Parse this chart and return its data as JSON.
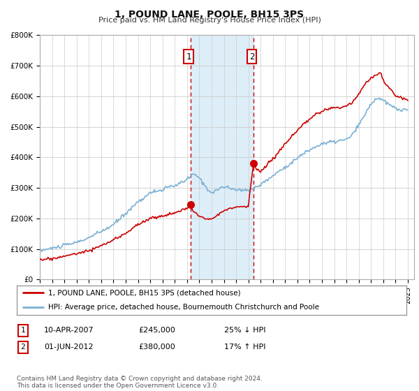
{
  "title": "1, POUND LANE, POOLE, BH15 3PS",
  "subtitle": "Price paid vs. HM Land Registry's House Price Index (HPI)",
  "ylabel_ticks": [
    "£0",
    "£100K",
    "£200K",
    "£300K",
    "£400K",
    "£500K",
    "£600K",
    "£700K",
    "£800K"
  ],
  "ylim": [
    0,
    800000
  ],
  "xlim_start": 1995.0,
  "xlim_end": 2025.5,
  "hpi_color": "#7ab0d4",
  "price_color": "#cc0000",
  "shade_color": "#ddeef8",
  "sale1_date": 2007.27,
  "sale1_price": 245000,
  "sale2_date": 2012.42,
  "sale2_price": 380000,
  "legend_line1": "1, POUND LANE, POOLE, BH15 3PS (detached house)",
  "legend_line2": "HPI: Average price, detached house, Bournemouth Christchurch and Poole",
  "table_row1": [
    "1",
    "10-APR-2007",
    "£245,000",
    "25% ↓ HPI"
  ],
  "table_row2": [
    "2",
    "01-JUN-2012",
    "£380,000",
    "17% ↑ HPI"
  ],
  "footnote": "Contains HM Land Registry data © Crown copyright and database right 2024.\nThis data is licensed under the Open Government Licence v3.0.",
  "background_color": "#ffffff",
  "grid_color": "#cccccc"
}
